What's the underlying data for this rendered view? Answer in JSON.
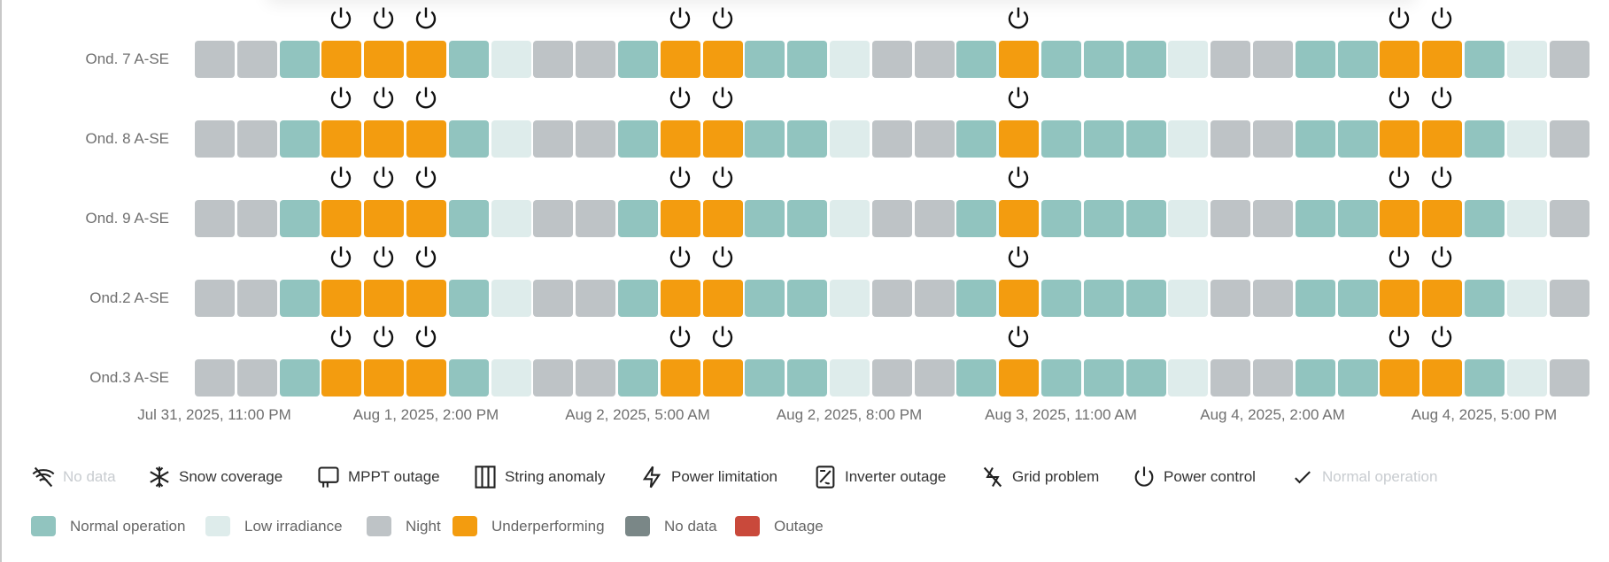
{
  "colors": {
    "N": "#bec3c6",
    "T": "#91c4bf",
    "L": "#deeceb",
    "O": "#f39c0f",
    "D": "#7a8787",
    "X": "#c9493b"
  },
  "status_names": {
    "T": "Normal operation",
    "L": "Low irradiance",
    "N": "Night",
    "O": "Underperforming",
    "D": "No data",
    "X": "Outage"
  },
  "chart_data": {
    "type": "heatmap",
    "x_tick_labels": [
      "Jul 31, 2025, 11:00 PM",
      "Aug 1, 2025, 2:00 PM",
      "Aug 2, 2025, 5:00 AM",
      "Aug 2, 2025, 8:00 PM",
      "Aug 3, 2025, 11:00 AM",
      "Aug 4, 2025, 2:00 AM",
      "Aug 4, 2025, 5:00 PM"
    ],
    "x_tick_every_n_cells": 5,
    "rows": [
      {
        "label": "Ond. 7 A-SE",
        "cells": [
          "N",
          "N",
          "T",
          "O",
          "O",
          "O",
          "T",
          "L",
          "N",
          "N",
          "T",
          "O",
          "O",
          "T",
          "T",
          "L",
          "N",
          "N",
          "T",
          "O",
          "T",
          "T",
          "T",
          "L",
          "N",
          "N",
          "T",
          "T",
          "O",
          "O",
          "T",
          "L",
          "N"
        ],
        "power_control": [
          3,
          4,
          5,
          11,
          12,
          19,
          28,
          29
        ]
      },
      {
        "label": "Ond. 8 A-SE",
        "cells": [
          "N",
          "N",
          "T",
          "O",
          "O",
          "O",
          "T",
          "L",
          "N",
          "N",
          "T",
          "O",
          "O",
          "T",
          "T",
          "L",
          "N",
          "N",
          "T",
          "O",
          "T",
          "T",
          "T",
          "L",
          "N",
          "N",
          "T",
          "T",
          "O",
          "O",
          "T",
          "L",
          "N"
        ],
        "power_control": [
          3,
          4,
          5,
          11,
          12,
          19,
          28,
          29
        ]
      },
      {
        "label": "Ond. 9 A-SE",
        "cells": [
          "N",
          "N",
          "T",
          "O",
          "O",
          "O",
          "T",
          "L",
          "N",
          "N",
          "T",
          "O",
          "O",
          "T",
          "T",
          "L",
          "N",
          "N",
          "T",
          "O",
          "T",
          "T",
          "T",
          "L",
          "N",
          "N",
          "T",
          "T",
          "O",
          "O",
          "T",
          "L",
          "N"
        ],
        "power_control": [
          3,
          4,
          5,
          11,
          12,
          19,
          28,
          29
        ]
      },
      {
        "label": "Ond.2 A-SE",
        "cells": [
          "N",
          "N",
          "T",
          "O",
          "O",
          "O",
          "T",
          "L",
          "N",
          "N",
          "T",
          "O",
          "O",
          "T",
          "T",
          "L",
          "N",
          "N",
          "T",
          "O",
          "T",
          "T",
          "T",
          "L",
          "N",
          "N",
          "T",
          "T",
          "O",
          "O",
          "T",
          "L",
          "N"
        ],
        "power_control": [
          3,
          4,
          5,
          11,
          12,
          19,
          28,
          29
        ]
      },
      {
        "label": "Ond.3 A-SE",
        "cells": [
          "N",
          "N",
          "T",
          "O",
          "O",
          "O",
          "T",
          "L",
          "N",
          "N",
          "T",
          "O",
          "O",
          "T",
          "T",
          "L",
          "N",
          "N",
          "T",
          "O",
          "T",
          "T",
          "T",
          "L",
          "N",
          "N",
          "T",
          "T",
          "O",
          "O",
          "T",
          "L",
          "N"
        ],
        "power_control": [
          3,
          4,
          5,
          11,
          12,
          19,
          28,
          29
        ]
      }
    ]
  },
  "legend_icons": [
    "No data",
    "Snow coverage",
    "MPPT outage",
    "String anomaly",
    "Power limitation",
    "Inverter outage",
    "Grid problem",
    "Power control",
    "Normal operation"
  ],
  "legend_colors": [
    "Normal operation",
    "Low irradiance",
    "Night",
    "Underperforming",
    "No data",
    "Outage"
  ]
}
